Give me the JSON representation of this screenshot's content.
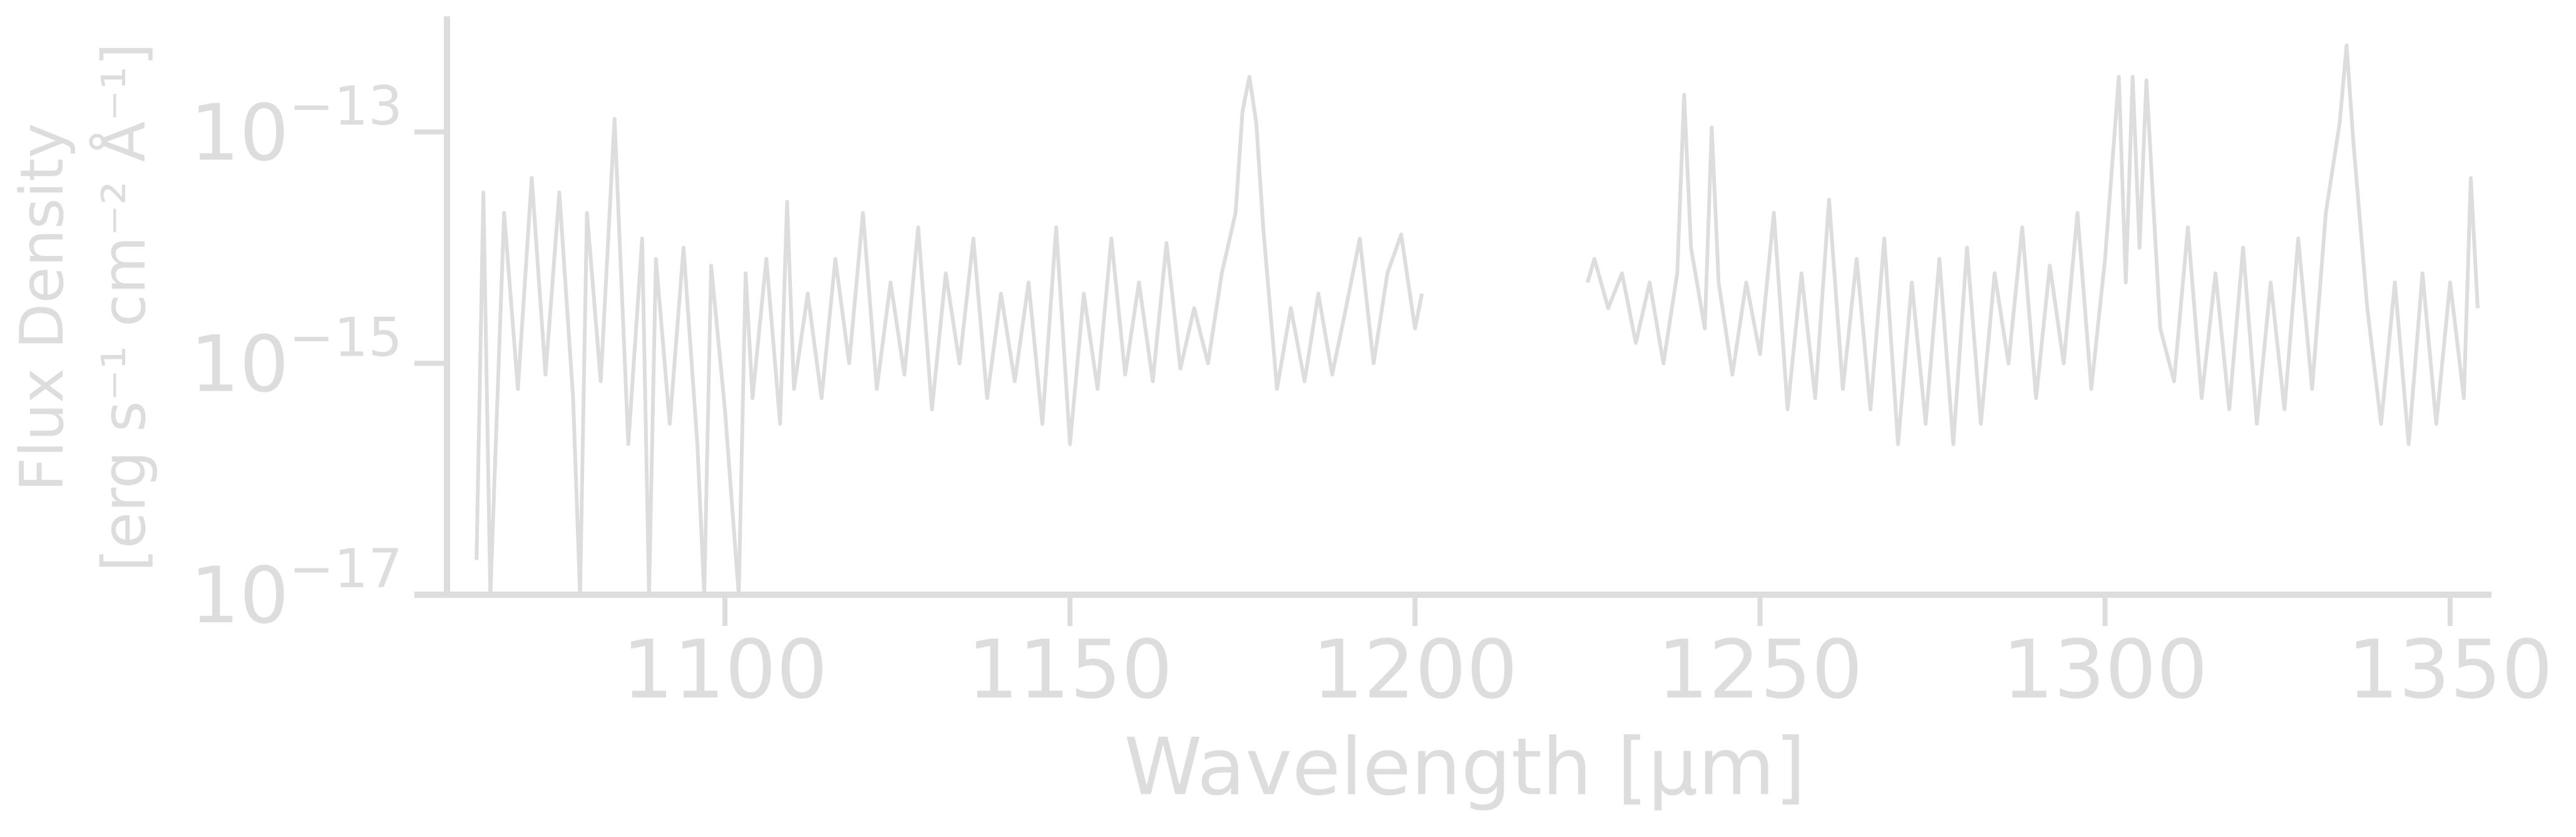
{
  "chart_data": {
    "type": "line",
    "xlabel": "Wavelength [μm]",
    "ylabel": [
      "Flux Density",
      "[erg s⁻¹ cm⁻² Å⁻¹]"
    ],
    "xlim": [
      1055,
      1356
    ],
    "xticks": [
      1100,
      1150,
      1200,
      1250,
      1300,
      1350
    ],
    "ylim": [
      1e-17,
      1e-12
    ],
    "yticks": [
      {
        "value": 1e-17,
        "label": "10",
        "exponent": "−17"
      },
      {
        "value": 1e-15,
        "label": "10",
        "exponent": "−15"
      },
      {
        "value": 1e-13,
        "label": "10",
        "exponent": "−13"
      }
    ],
    "yscale": "log",
    "grid": false,
    "color": "#dddddd",
    "x": [
      1064,
      1065,
      1066,
      1068,
      1070,
      1072,
      1074,
      1076,
      1078,
      1079,
      1080,
      1082,
      1084,
      1085,
      1086,
      1088,
      1089,
      1090,
      1092,
      1094,
      1096,
      1097,
      1098,
      1100,
      1102,
      1103,
      1104,
      1106,
      1108,
      1109,
      1110,
      1112,
      1114,
      1116,
      1118,
      1120,
      1122,
      1124,
      1126,
      1128,
      1130,
      1132,
      1134,
      1136,
      1138,
      1140,
      1142,
      1144,
      1146,
      1148,
      1150,
      1152,
      1154,
      1156,
      1158,
      1160,
      1162,
      1164,
      1166,
      1168,
      1170,
      1172,
      1174,
      1175,
      1176,
      1177,
      1178,
      1180,
      1182,
      1184,
      1186,
      1188,
      1190,
      1192,
      1194,
      1196,
      1198,
      1200,
      1201,
      1212,
      1225,
      1226,
      1228,
      1230,
      1232,
      1234,
      1236,
      1238,
      1239,
      1240,
      1242,
      1243,
      1244,
      1246,
      1248,
      1250,
      1252,
      1254,
      1256,
      1258,
      1260,
      1262,
      1264,
      1266,
      1268,
      1270,
      1272,
      1274,
      1276,
      1278,
      1280,
      1282,
      1284,
      1286,
      1288,
      1290,
      1292,
      1294,
      1296,
      1298,
      1300,
      1302,
      1303,
      1304,
      1305,
      1306,
      1308,
      1310,
      1312,
      1314,
      1316,
      1318,
      1320,
      1322,
      1324,
      1326,
      1328,
      1330,
      1332,
      1334,
      1335,
      1336,
      1338,
      1340,
      1342,
      1344,
      1346,
      1348,
      1350,
      1352,
      1353,
      1354
    ],
    "values": [
      2e-17,
      3e-14,
      1e-17,
      2e-14,
      6e-16,
      4e-14,
      8e-16,
      3e-14,
      5e-16,
      1e-17,
      2e-14,
      7e-16,
      1.3e-13,
      5e-15,
      2e-16,
      1.2e-14,
      1e-17,
      8e-15,
      3e-16,
      1e-14,
      2e-16,
      1e-17,
      7e-15,
      4e-16,
      1e-17,
      6e-15,
      5e-16,
      8e-15,
      3e-16,
      2.5e-14,
      6e-16,
      4e-15,
      5e-16,
      8e-15,
      1e-15,
      2e-14,
      6e-16,
      5e-15,
      8e-16,
      1.5e-14,
      4e-16,
      6e-15,
      1e-15,
      1.2e-14,
      5e-16,
      4e-15,
      7e-16,
      5e-15,
      3e-16,
      1.5e-14,
      2e-16,
      4e-15,
      6e-16,
      1.2e-14,
      8e-16,
      5e-15,
      7e-16,
      1.1e-14,
      9e-16,
      3e-15,
      1e-15,
      6e-15,
      2e-14,
      1.5e-13,
      3e-13,
      1.2e-13,
      1.5e-14,
      6e-16,
      3e-15,
      7e-16,
      4e-15,
      8e-16,
      3e-15,
      1.2e-14,
      1e-15,
      6e-15,
      1.3e-14,
      2e-15,
      4e-15,
      null,
      5e-15,
      8e-15,
      3e-15,
      6e-15,
      1.5e-15,
      5e-15,
      1e-15,
      6e-15,
      2.1e-13,
      1e-14,
      2e-15,
      1.1e-13,
      5e-15,
      8e-16,
      5e-15,
      1.2e-15,
      2e-14,
      4e-16,
      6e-15,
      5e-16,
      2.6e-14,
      6e-16,
      8e-15,
      4e-16,
      1.2e-14,
      2e-16,
      5e-15,
      3e-16,
      8e-15,
      2e-16,
      1e-14,
      3e-16,
      6e-15,
      1e-15,
      1.5e-14,
      5e-16,
      7e-15,
      1e-15,
      2e-14,
      6e-16,
      8e-15,
      3e-13,
      5e-15,
      3e-13,
      1e-14,
      2.8e-13,
      2e-15,
      7e-16,
      1.5e-14,
      5e-16,
      6e-15,
      4e-16,
      1e-14,
      3e-16,
      5e-15,
      4e-16,
      1.2e-14,
      6e-16,
      2e-14,
      1.2e-13,
      5.6e-13,
      8e-14,
      3e-15,
      3e-16,
      5e-15,
      2e-16,
      6e-15,
      3e-16,
      5e-15,
      5e-16,
      4e-14,
      3e-15
    ]
  }
}
